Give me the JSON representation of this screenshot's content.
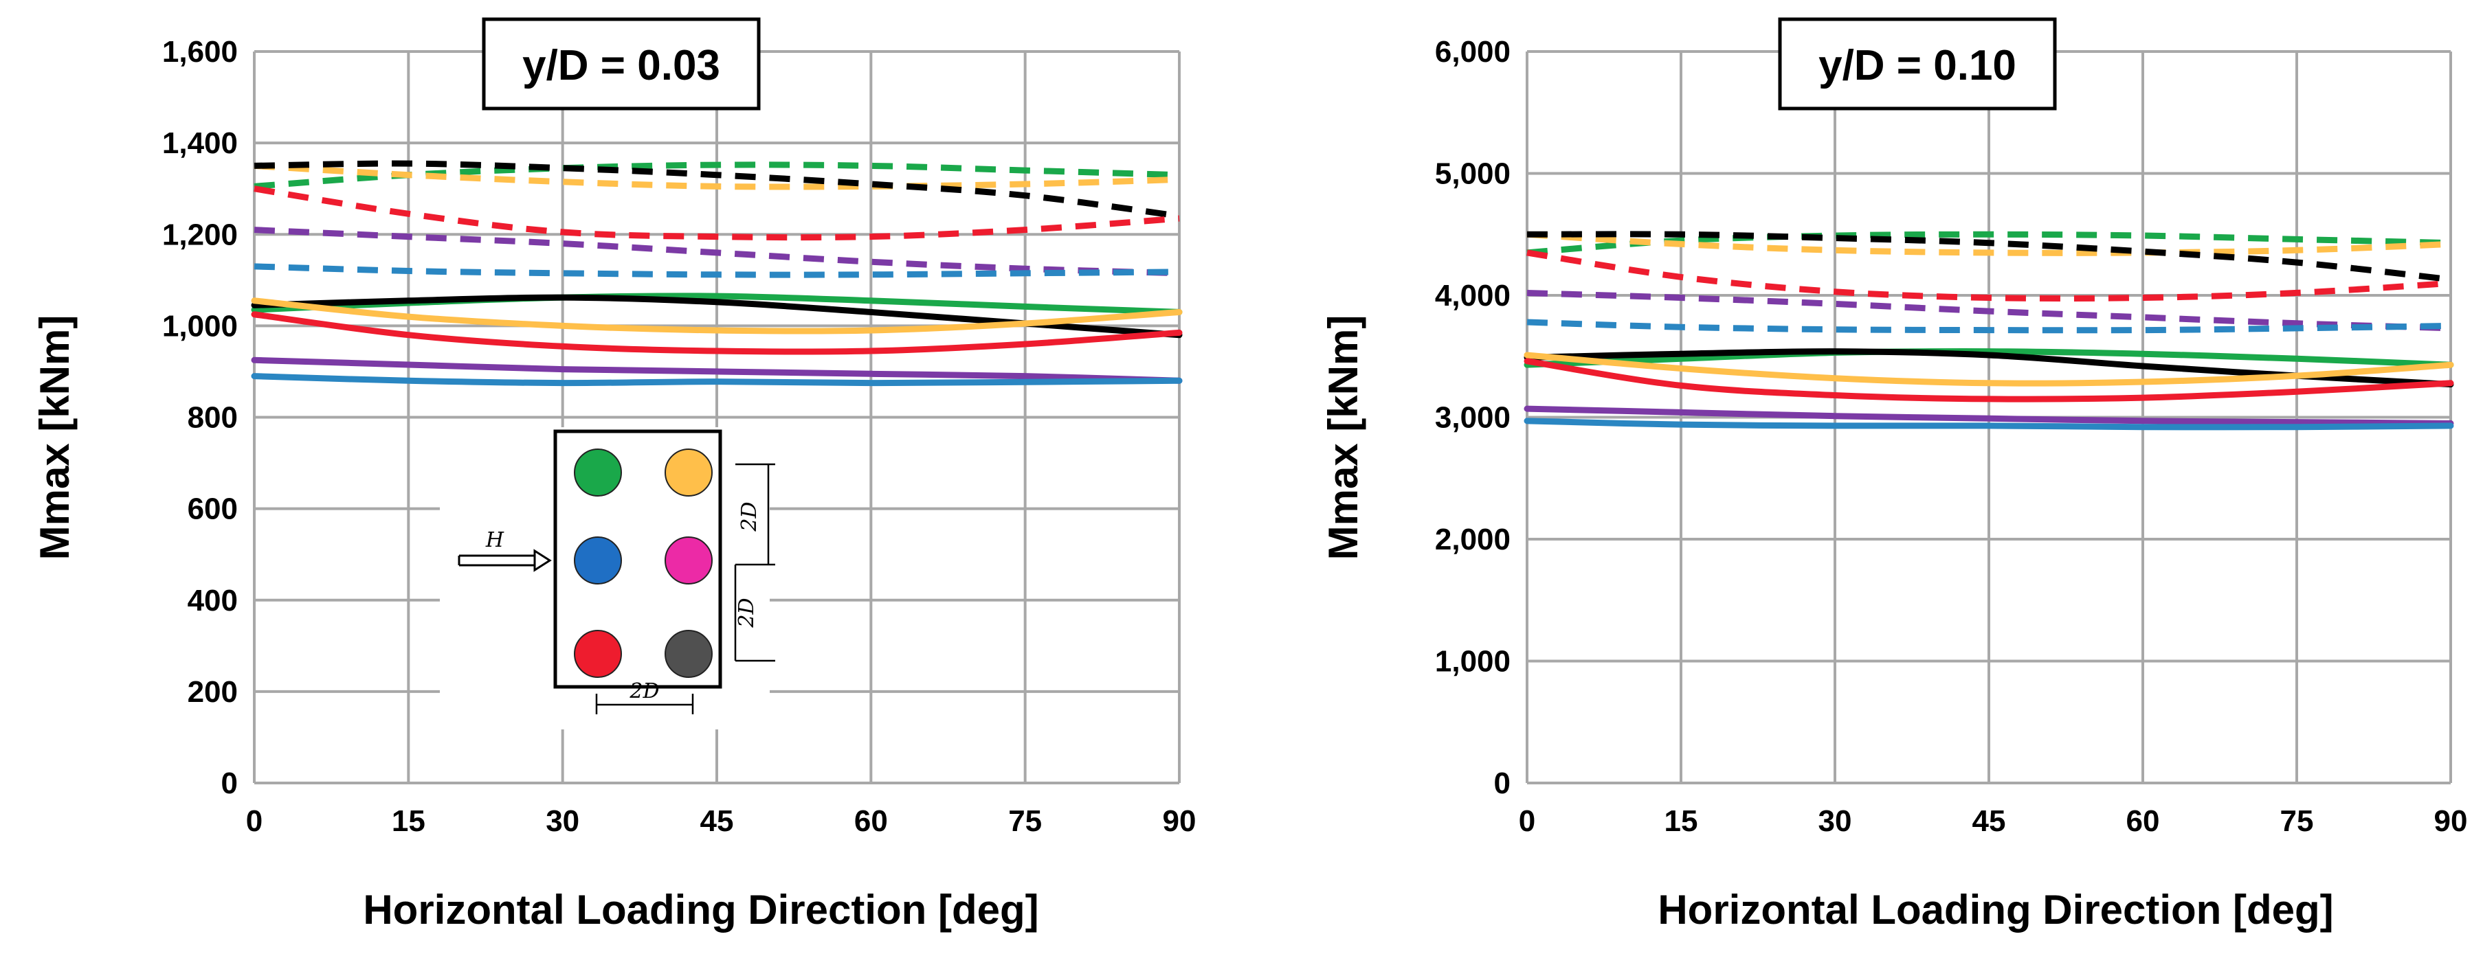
{
  "colors": {
    "green": "#1aa84a",
    "orange": "#ffbf4a",
    "blue": "#1f6fc4",
    "magenta": "#ec2aa6",
    "red": "#ee1c2e",
    "dark": "#505050",
    "black": "#000000",
    "purple": "#7b3aa5",
    "blueline": "#2a86c2",
    "grid": "#a8a8a8"
  },
  "chart_data": [
    {
      "type": "line",
      "title": "y/D = 0.03",
      "xlabel": "Horizontal Loading Direction [deg]",
      "ylabel": "Mmax [kNm]",
      "xlim": [
        0,
        90
      ],
      "ylim": [
        0,
        1600
      ],
      "xticks": [
        0,
        15,
        30,
        45,
        60,
        75,
        90
      ],
      "yticks": [
        0,
        200,
        400,
        600,
        800,
        1000,
        1200,
        1400,
        1600
      ],
      "xtick_labels": [
        "0",
        "15",
        "30",
        "45",
        "60",
        "75",
        "90"
      ],
      "ytick_labels": [
        "0",
        "200",
        "400",
        "600",
        "800",
        "1,000",
        "1,200",
        "1,400",
        "1,600"
      ],
      "x": [
        0,
        15,
        30,
        45,
        60,
        75,
        90
      ],
      "series": [
        {
          "name": "green dashed",
          "color": "green",
          "style": "dashed",
          "values": [
            1305,
            1330,
            1345,
            1352,
            1350,
            1340,
            1330
          ]
        },
        {
          "name": "orange dashed",
          "color": "orange",
          "style": "dashed",
          "values": [
            1350,
            1330,
            1315,
            1305,
            1305,
            1310,
            1320
          ]
        },
        {
          "name": "black dashed",
          "color": "black",
          "style": "dashed",
          "values": [
            1350,
            1355,
            1345,
            1330,
            1310,
            1285,
            1240
          ]
        },
        {
          "name": "red dashed",
          "color": "red",
          "style": "dashed",
          "values": [
            1300,
            1245,
            1205,
            1195,
            1195,
            1210,
            1235
          ]
        },
        {
          "name": "purple dashed",
          "color": "purple",
          "style": "dashed",
          "values": [
            1210,
            1195,
            1180,
            1160,
            1140,
            1125,
            1115
          ]
        },
        {
          "name": "blue dashed",
          "color": "blueline",
          "style": "dashed",
          "values": [
            1130,
            1120,
            1115,
            1112,
            1112,
            1115,
            1118
          ]
        },
        {
          "name": "green solid",
          "color": "green",
          "style": "solid",
          "values": [
            1035,
            1050,
            1062,
            1065,
            1055,
            1042,
            1030
          ]
        },
        {
          "name": "black solid",
          "color": "black",
          "style": "solid",
          "values": [
            1045,
            1055,
            1062,
            1052,
            1030,
            1005,
            980
          ]
        },
        {
          "name": "orange solid",
          "color": "orange",
          "style": "solid",
          "values": [
            1055,
            1020,
            1000,
            990,
            990,
            1005,
            1030
          ]
        },
        {
          "name": "red solid",
          "color": "red",
          "style": "solid",
          "values": [
            1025,
            980,
            955,
            945,
            945,
            960,
            985
          ]
        },
        {
          "name": "purple solid",
          "color": "purple",
          "style": "solid",
          "values": [
            925,
            915,
            905,
            900,
            895,
            890,
            880
          ]
        },
        {
          "name": "blue solid",
          "color": "blueline",
          "style": "solid",
          "values": [
            890,
            880,
            875,
            878,
            875,
            877,
            880
          ]
        }
      ]
    },
    {
      "type": "line",
      "title": "y/D = 0.10",
      "xlabel": "Horizontal Loading Direction [deg]",
      "ylabel": "Mmax [kNm]",
      "xlim": [
        0,
        90
      ],
      "ylim": [
        0,
        6000
      ],
      "xticks": [
        0,
        15,
        30,
        45,
        60,
        75,
        90
      ],
      "yticks": [
        0,
        1000,
        2000,
        3000,
        4000,
        5000,
        6000
      ],
      "xtick_labels": [
        "0",
        "15",
        "30",
        "45",
        "60",
        "75",
        "90"
      ],
      "ytick_labels": [
        "0",
        "1,000",
        "2,000",
        "3,000",
        "4,000",
        "5,000",
        "6,000"
      ],
      "x": [
        0,
        15,
        30,
        45,
        60,
        75,
        90
      ],
      "series": [
        {
          "name": "green dashed",
          "color": "green",
          "style": "dashed",
          "values": [
            4350,
            4450,
            4490,
            4500,
            4490,
            4460,
            4430
          ]
        },
        {
          "name": "orange dashed",
          "color": "orange",
          "style": "dashed",
          "values": [
            4500,
            4420,
            4370,
            4350,
            4350,
            4370,
            4420
          ]
        },
        {
          "name": "black dashed",
          "color": "black",
          "style": "dashed",
          "values": [
            4500,
            4500,
            4470,
            4430,
            4360,
            4270,
            4130
          ]
        },
        {
          "name": "red dashed",
          "color": "red",
          "style": "dashed",
          "values": [
            4350,
            4150,
            4030,
            3980,
            3980,
            4020,
            4100
          ]
        },
        {
          "name": "purple dashed",
          "color": "purple",
          "style": "dashed",
          "values": [
            4020,
            3980,
            3930,
            3870,
            3820,
            3770,
            3730
          ]
        },
        {
          "name": "blue dashed",
          "color": "blueline",
          "style": "dashed",
          "values": [
            3780,
            3740,
            3720,
            3715,
            3715,
            3730,
            3750
          ]
        },
        {
          "name": "green solid",
          "color": "green",
          "style": "solid",
          "values": [
            3430,
            3480,
            3530,
            3540,
            3520,
            3480,
            3430
          ]
        },
        {
          "name": "black solid",
          "color": "black",
          "style": "solid",
          "values": [
            3490,
            3520,
            3540,
            3510,
            3420,
            3340,
            3270
          ]
        },
        {
          "name": "orange solid",
          "color": "orange",
          "style": "solid",
          "values": [
            3510,
            3400,
            3320,
            3280,
            3290,
            3340,
            3430
          ]
        },
        {
          "name": "red solid",
          "color": "red",
          "style": "solid",
          "values": [
            3460,
            3260,
            3180,
            3150,
            3160,
            3210,
            3280
          ]
        },
        {
          "name": "purple solid",
          "color": "purple",
          "style": "solid",
          "values": [
            3070,
            3040,
            3010,
            2990,
            2970,
            2960,
            2950
          ]
        },
        {
          "name": "blue solid",
          "color": "blueline",
          "style": "solid",
          "values": [
            2970,
            2940,
            2930,
            2930,
            2920,
            2920,
            2930
          ]
        }
      ]
    }
  ],
  "inset": {
    "force_label": "H",
    "spacing_label_right_top": "2D",
    "spacing_label_right_bottom": "2D",
    "spacing_label_bottom": "2D",
    "piles": [
      "green",
      "orange",
      "blue",
      "magenta",
      "red",
      "dark"
    ]
  }
}
